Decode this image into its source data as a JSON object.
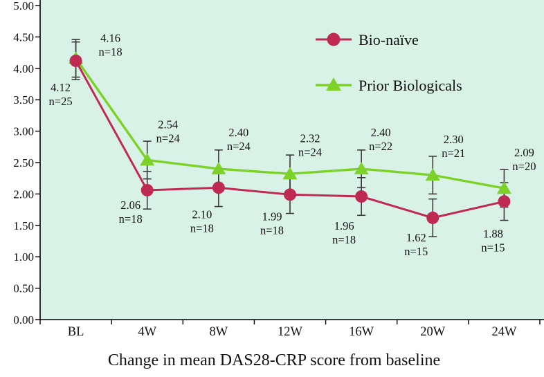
{
  "chart_data": {
    "type": "line",
    "title": "Change in mean DAS28-CRP score from baseline",
    "categories": [
      "BL",
      "4W",
      "8W",
      "12W",
      "16W",
      "20W",
      "24W"
    ],
    "y_ticks": [
      "5.00",
      "4.50",
      "4.00",
      "3.50",
      "3.00",
      "2.50",
      "2.00",
      "1.50",
      "1.00",
      "0.50",
      "0.00"
    ],
    "ylim": [
      0,
      5
    ],
    "grid": false,
    "legend_position": "top-right",
    "plot_bg": "#d9f2e7",
    "error_bar": 0.3,
    "series": [
      {
        "name": "Bio-naïve",
        "marker": "circle",
        "color": "#bf2a52",
        "values": [
          4.12,
          2.06,
          2.1,
          1.99,
          1.96,
          1.62,
          1.88
        ],
        "n": [
          25,
          18,
          18,
          18,
          18,
          15,
          15
        ]
      },
      {
        "name": "Prior Biologicals",
        "marker": "triangle",
        "color": "#7cd228",
        "values": [
          4.16,
          2.54,
          2.4,
          2.32,
          2.4,
          2.3,
          2.09
        ],
        "n": [
          18,
          24,
          24,
          24,
          22,
          21,
          20
        ]
      }
    ]
  }
}
